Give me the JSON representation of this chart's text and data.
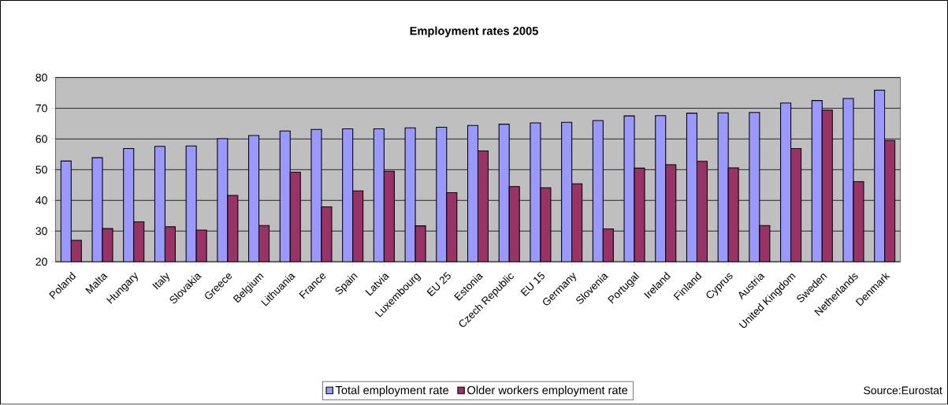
{
  "chart_data": {
    "type": "bar",
    "title": "Employment rates 2005",
    "categories": [
      "Poland",
      "Malta",
      "Hungary",
      "Italy",
      "Slovakia",
      "Greece",
      "Belgium",
      "Lithuania",
      "France",
      "Spain",
      "Latvia",
      "Luxembourg",
      "EU 25",
      "Estonia",
      "Czech Republic",
      "EU 15",
      "Germany",
      "Slovenia",
      "Portugal",
      "Ireland",
      "Finland",
      "Cyprus",
      "Austria",
      "United Kingdom",
      "Sweden",
      "Netherlands",
      "Denmark"
    ],
    "series": [
      {
        "name": "Total employment rate",
        "color": "#9999ff",
        "values": [
          52.8,
          53.9,
          56.9,
          57.6,
          57.7,
          60.1,
          61.1,
          62.6,
          63.1,
          63.3,
          63.3,
          63.6,
          63.8,
          64.4,
          64.8,
          65.2,
          65.4,
          66.0,
          67.5,
          67.6,
          68.4,
          68.5,
          68.6,
          71.7,
          72.5,
          73.2,
          75.9
        ]
      },
      {
        "name": "Older workers employment rate",
        "color": "#993366",
        "values": [
          27.0,
          30.8,
          33.0,
          31.4,
          30.3,
          41.6,
          31.8,
          49.2,
          37.9,
          43.1,
          49.5,
          31.7,
          42.5,
          56.1,
          44.5,
          44.1,
          45.4,
          30.7,
          50.5,
          51.6,
          52.7,
          50.6,
          31.8,
          56.9,
          69.4,
          46.1,
          59.5
        ]
      }
    ],
    "ylim": [
      20,
      80
    ],
    "yticks": [
      20,
      30,
      40,
      50,
      60,
      70,
      80
    ],
    "grid": "y",
    "legend": "bottom",
    "annotations": [
      "Source:Eurostat"
    ]
  }
}
